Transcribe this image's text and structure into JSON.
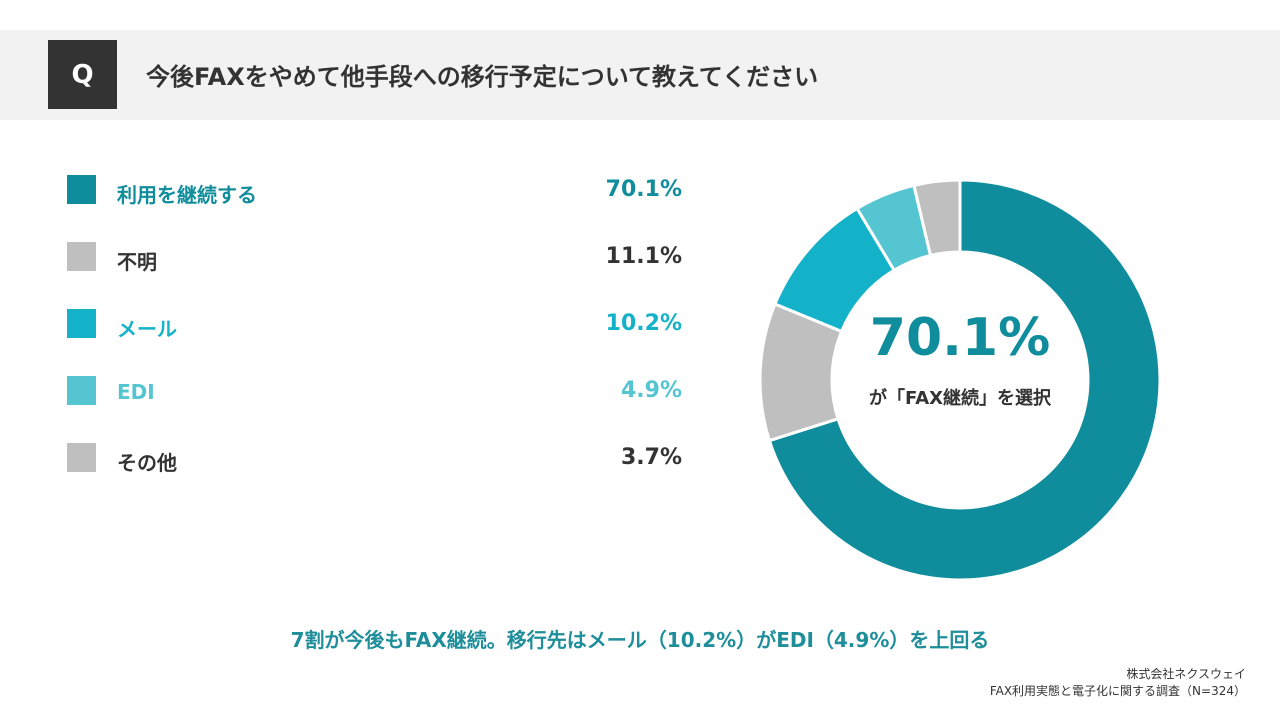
{
  "header": {
    "badge": "Q",
    "question": "今後FAXをやめて他手段への移行予定について教えてください"
  },
  "chart_data": {
    "type": "pie",
    "donut": true,
    "categories": [
      "利用を継続する",
      "不明",
      "メール",
      "EDI",
      "その他"
    ],
    "values": [
      70.1,
      11.1,
      10.2,
      4.9,
      3.7
    ],
    "value_labels": [
      "70.1%",
      "11.1%",
      "10.2%",
      "4.9%",
      "3.7%"
    ],
    "colors": [
      "#108d9c",
      "#bfbfbf",
      "#14b2c8",
      "#55c5d2",
      "#bfbfbf"
    ],
    "label_colors": [
      "#108d9c",
      "#333333",
      "#14b2c8",
      "#55c5d2",
      "#333333"
    ],
    "unit": "%",
    "center_value": "70.1%",
    "center_caption": "が「FAX継続」を選択"
  },
  "summary": "7割が今後もFAX継続。移行先はメール（10.2%）がEDI（4.9%）を上回る",
  "footer": {
    "company": "株式会社ネクスウェイ",
    "survey": "FAX利用実態と電子化に関する調査（N=324）"
  }
}
